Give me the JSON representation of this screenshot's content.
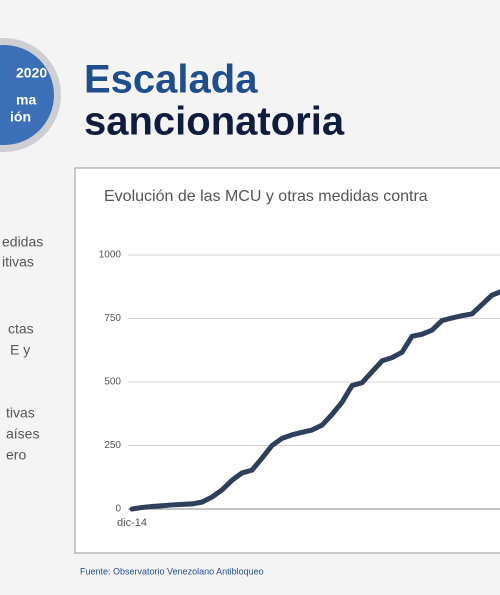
{
  "slide": {
    "badge": [
      "2020",
      "ma",
      "ión"
    ],
    "title_lines": [
      "Escalada",
      "sancionatoria"
    ],
    "side_text": [
      "edidas",
      "itivas",
      "ctas",
      "E y",
      "tivas",
      "aíses",
      "ero"
    ],
    "source": "Fuente: Observatorio Venezolano Antibloqueo"
  },
  "chart_data": {
    "type": "line",
    "title": "Evolución de las MCU y otras medidas contra",
    "categories": [
      "dic-14",
      null,
      null,
      null,
      null,
      null,
      null,
      null,
      null,
      null,
      null,
      null,
      null,
      null,
      null,
      null,
      null,
      null,
      null,
      null,
      null,
      null,
      null,
      null,
      null,
      null,
      null,
      null,
      null,
      null,
      null,
      null,
      null,
      null,
      null,
      null,
      null,
      null
    ],
    "values": [
      0,
      6,
      10,
      13,
      16,
      18,
      20,
      27,
      47,
      75,
      113,
      142,
      153,
      200,
      250,
      278,
      292,
      302,
      311,
      330,
      372,
      420,
      486,
      497,
      540,
      583,
      596,
      617,
      680,
      688,
      704,
      742,
      752,
      761,
      768,
      805,
      842,
      857
    ],
    "color": "#2e3f5c",
    "ylim": [
      0,
      1000
    ],
    "yticks": [
      0,
      250,
      500,
      750,
      1000
    ],
    "grid": true
  }
}
